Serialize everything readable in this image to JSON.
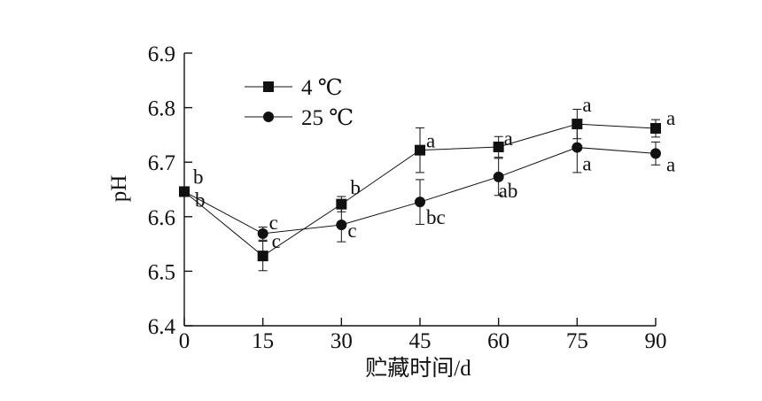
{
  "chart_data": {
    "type": "line",
    "title": "",
    "xlabel": "贮藏时间/d",
    "ylabel": "pH",
    "xlim": [
      0,
      90
    ],
    "ylim": [
      6.4,
      6.9
    ],
    "x": [
      0,
      15,
      30,
      45,
      60,
      75,
      90
    ],
    "x_ticks": [
      "0",
      "15",
      "30",
      "45",
      "60",
      "75",
      "90"
    ],
    "y_ticks": [
      "6.4",
      "6.5",
      "6.6",
      "6.7",
      "6.8",
      "6.9"
    ],
    "y_tick_values": [
      6.4,
      6.5,
      6.6,
      6.7,
      6.8,
      6.9
    ],
    "grid": false,
    "legend_position": "top-left",
    "series": [
      {
        "name": "4 ℃",
        "marker": "square",
        "values": [
          6.646,
          6.528,
          6.623,
          6.722,
          6.728,
          6.77,
          6.762
        ],
        "errors": [
          0,
          0.027,
          0.014,
          0.041,
          0.019,
          0.027,
          0.016
        ],
        "labels": [
          "b",
          "c",
          "b",
          "a",
          "a",
          "a",
          "a"
        ]
      },
      {
        "name": "25 ℃",
        "marker": "circle",
        "values": [
          6.646,
          6.569,
          6.585,
          6.627,
          6.673,
          6.727,
          6.716
        ],
        "errors": [
          0,
          0.012,
          0.031,
          0.041,
          0.034,
          0.046,
          0.021
        ],
        "labels": [
          "b",
          "c",
          "c",
          "bc",
          "ab",
          "a",
          "a"
        ]
      }
    ]
  }
}
